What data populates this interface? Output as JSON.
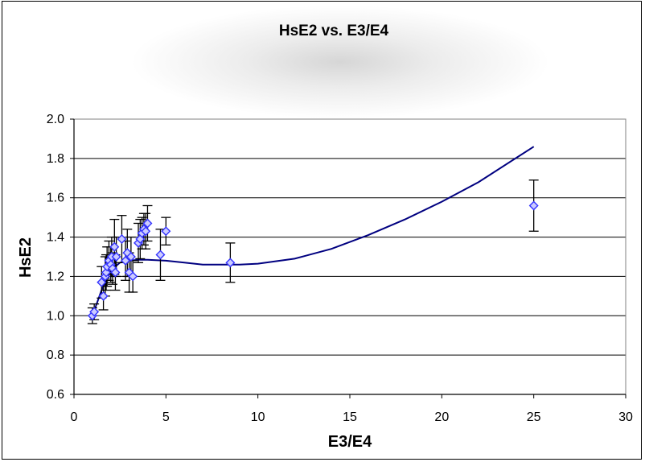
{
  "chart_data": {
    "type": "scatter",
    "title": "HsE2 vs. E3/E4",
    "xlabel": "E3/E4",
    "ylabel": "HsE2",
    "xlim": [
      0,
      30
    ],
    "ylim": [
      0.6,
      2.0
    ],
    "xticks": [
      0,
      5,
      10,
      15,
      20,
      25,
      30
    ],
    "yticks": [
      0.6,
      0.8,
      1.0,
      1.2,
      1.4,
      1.6,
      1.8,
      2.0
    ],
    "ytick_labels": [
      "0.6",
      "0.8",
      "1.0",
      "1.2",
      "1.4",
      "1.6",
      "1.8",
      "2.0"
    ],
    "grid": "horizontal",
    "legend": "none",
    "colors": {
      "points": "#3333ff",
      "point_fill": "#ccccff",
      "line": "#000080",
      "grid": "#000000",
      "error_bars": "#000000"
    },
    "series": [
      {
        "type": "scatter",
        "x": [
          1.0,
          1.1,
          1.5,
          1.6,
          1.7,
          1.75,
          1.8,
          1.9,
          2.0,
          2.05,
          2.1,
          2.2,
          2.25,
          2.3,
          2.6,
          2.8,
          2.9,
          3.0,
          3.1,
          3.2,
          3.5,
          3.6,
          3.7,
          3.8,
          3.9,
          4.0,
          4.7,
          5.0,
          8.5,
          25.0
        ],
        "y": [
          1.0,
          1.02,
          1.17,
          1.1,
          1.2,
          1.22,
          1.25,
          1.28,
          1.26,
          1.3,
          1.24,
          1.35,
          1.22,
          1.3,
          1.39,
          1.28,
          1.32,
          1.22,
          1.3,
          1.2,
          1.37,
          1.39,
          1.42,
          1.44,
          1.43,
          1.47,
          1.31,
          1.43,
          1.27,
          1.56
        ],
        "error": [
          0.04,
          0.04,
          0.08,
          0.07,
          0.1,
          0.09,
          0.1,
          0.1,
          0.09,
          0.1,
          0.08,
          0.14,
          0.09,
          0.1,
          0.12,
          0.1,
          0.12,
          0.1,
          0.1,
          0.08,
          0.1,
          0.1,
          0.08,
          0.08,
          0.09,
          0.09,
          0.13,
          0.07,
          0.1,
          0.13
        ]
      },
      {
        "type": "line",
        "x": [
          1,
          1.5,
          2,
          2.5,
          3,
          3.5,
          4,
          5,
          6,
          7,
          8,
          9,
          10,
          12,
          14,
          16,
          18,
          20,
          22,
          24,
          25
        ],
        "y": [
          1.0,
          1.13,
          1.23,
          1.27,
          1.28,
          1.285,
          1.285,
          1.28,
          1.27,
          1.26,
          1.26,
          1.26,
          1.265,
          1.29,
          1.34,
          1.41,
          1.49,
          1.58,
          1.68,
          1.8,
          1.86
        ]
      }
    ]
  }
}
